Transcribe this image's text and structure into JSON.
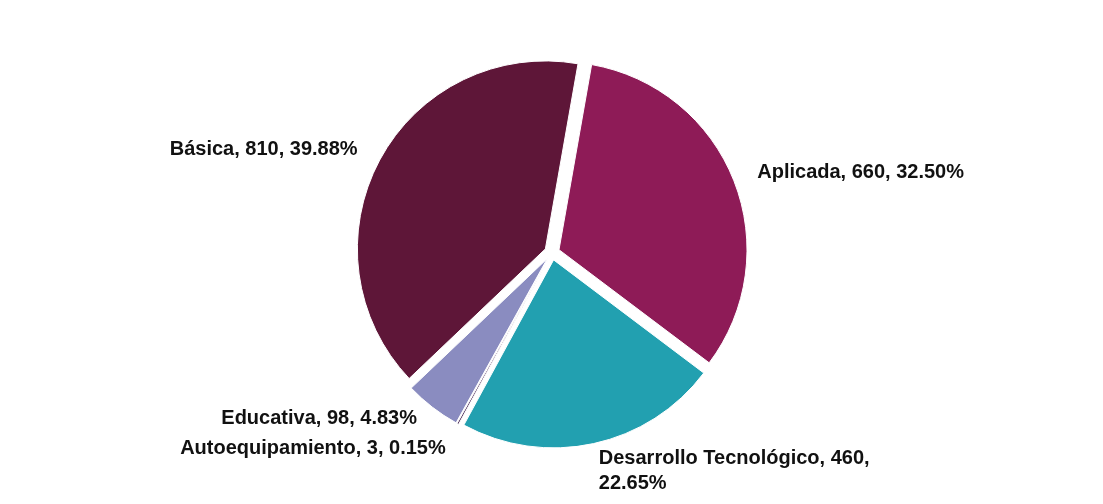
{
  "chart_data": {
    "type": "pie",
    "categories": [
      "Aplicada",
      "Desarrollo Tecnológico",
      "Autoequipamiento",
      "Educativa",
      "Básica"
    ],
    "values": [
      660,
      460,
      3,
      98,
      810
    ],
    "value_labels": [
      "660, 32.50%",
      "460, 22.65%",
      "3, 0.15%",
      "98, 4.83%",
      "810, 39.88%"
    ],
    "colors": [
      "#8e1b57",
      "#22a0b0",
      "#4a2a55",
      "#8a8cc0",
      "#5e1638"
    ]
  }
}
